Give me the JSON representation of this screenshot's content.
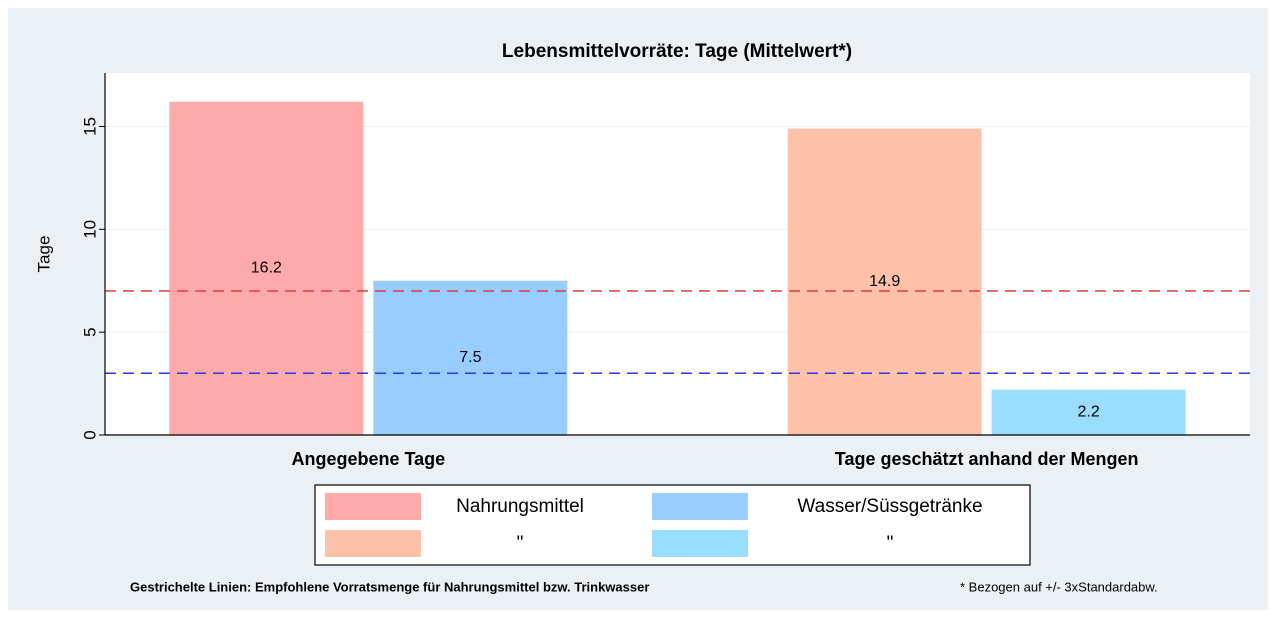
{
  "chart_data": {
    "type": "bar",
    "title": "Lebensmittelvorräte: Tage (Mittelwert*)",
    "y_label": "Tage",
    "categories": [
      "Angegebene Tage",
      "Tage geschätzt anhand der Mengen"
    ],
    "series": [
      {
        "name": "Nahrungsmittel",
        "color": "#ffaaaa",
        "values": [
          16.2,
          null
        ]
      },
      {
        "name": "Wasser/Süssgetränke",
        "color": "#99ccff",
        "values": [
          7.5,
          null
        ]
      },
      {
        "name": "\"",
        "color": "#ffc1aa",
        "values": [
          null,
          14.9
        ]
      },
      {
        "name": "\"",
        "color": "#99ddff",
        "values": [
          null,
          2.2
        ]
      }
    ],
    "reference_lines": [
      {
        "value": 7,
        "color": "#e03a3a"
      },
      {
        "value": 3,
        "color": "#2a3ae0"
      }
    ],
    "ylim": [
      0,
      17.6
    ],
    "yticks": [
      0,
      5,
      10,
      15
    ],
    "grid": true,
    "footnote_left": "Gestrichelte Linien: Empfohlene Vorratsmenge für Nahrungsmittel bzw. Trinkwasser",
    "footnote_right": "* Bezogen auf +/- 3xStandardabw."
  }
}
